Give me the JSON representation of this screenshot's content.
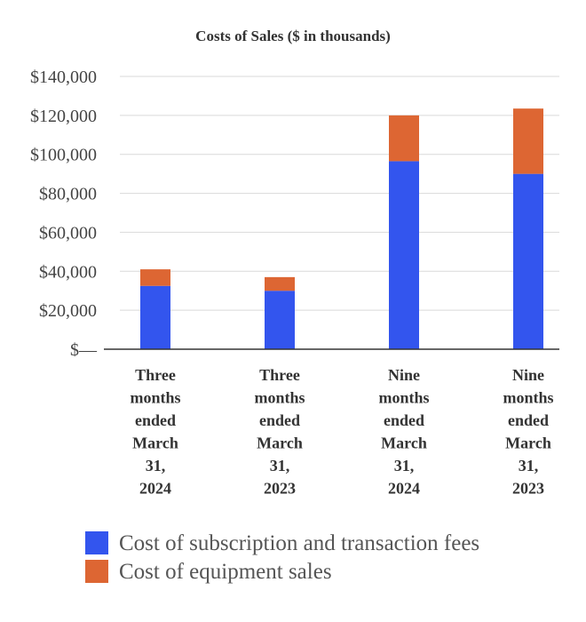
{
  "chart_data": {
    "type": "bar",
    "stacked": true,
    "title": "Costs of Sales ($ in thousands)",
    "categories": [
      [
        "Three",
        "months",
        "ended",
        "March",
        "31,",
        "2024"
      ],
      [
        "Three",
        "months",
        "ended",
        "March",
        "31,",
        "2023"
      ],
      [
        "Nine",
        "months",
        "ended",
        "March",
        "31,",
        "2024"
      ],
      [
        "Nine",
        "months",
        "ended",
        "March",
        "31,",
        "2023"
      ]
    ],
    "series": [
      {
        "name": "Cost of subscription and transaction fees",
        "color": "#3355ee",
        "values": [
          32500,
          30000,
          96500,
          90000
        ]
      },
      {
        "name": "Cost of equipment sales",
        "color": "#dd6633",
        "values": [
          8500,
          7000,
          23500,
          33500
        ]
      }
    ],
    "ylim": [
      0,
      140000
    ],
    "yticks": [
      0,
      20000,
      40000,
      60000,
      80000,
      100000,
      120000,
      140000
    ],
    "ytick_labels": [
      "$—",
      "$20,000",
      "$40,000",
      "$60,000",
      "$80,000",
      "$100,000",
      "$120,000",
      "$140,000"
    ],
    "grid": true,
    "legend_position": "bottom-left",
    "xlabel": "",
    "ylabel": ""
  }
}
